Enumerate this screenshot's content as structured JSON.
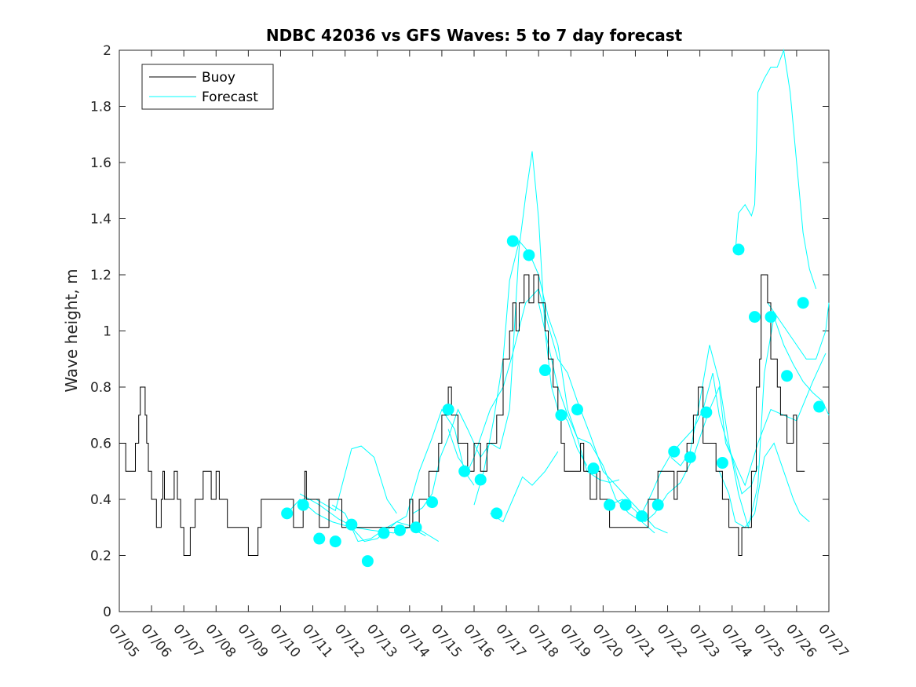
{
  "chart_data": {
    "type": "line",
    "title": "NDBC 42036 vs GFS Waves: 5 to 7 day forecast",
    "xlabel": "",
    "ylabel": "Wave height, m",
    "ylim": [
      0,
      2
    ],
    "xlim": [
      0,
      22
    ],
    "yticks": [
      0,
      0.2,
      0.4,
      0.6,
      0.8,
      1,
      1.2,
      1.4,
      1.6,
      1.8,
      2
    ],
    "ytick_labels": [
      "0",
      "0.2",
      "0.4",
      "0.6",
      "0.8",
      "1",
      "1.2",
      "1.4",
      "1.6",
      "1.8",
      "2"
    ],
    "xtick_labels": [
      "07/05",
      "07/06",
      "07/07",
      "07/08",
      "07/09",
      "07/10",
      "07/11",
      "07/12",
      "07/13",
      "07/14",
      "07/15",
      "07/16",
      "07/17",
      "07/18",
      "07/19",
      "07/20",
      "07/21",
      "07/22",
      "07/23",
      "07/24",
      "07/25",
      "07/26",
      "07/27"
    ],
    "x_unit_note": "",
    "grid": false,
    "legend_position": "top-left",
    "legend": [
      {
        "label": "Buoy",
        "color": "#000000"
      },
      {
        "label": "Forecast",
        "color": "#00ffff"
      }
    ],
    "colors": {
      "buoy": "#000000",
      "forecast": "#00ffff"
    },
    "series": [
      {
        "name": "Buoy",
        "style": "step",
        "points": [
          [
            0.0,
            0.6
          ],
          [
            0.1,
            0.6
          ],
          [
            0.2,
            0.5
          ],
          [
            0.5,
            0.6
          ],
          [
            0.6,
            0.7
          ],
          [
            0.65,
            0.8
          ],
          [
            0.8,
            0.7
          ],
          [
            0.85,
            0.6
          ],
          [
            0.9,
            0.5
          ],
          [
            1.0,
            0.4
          ],
          [
            1.1,
            0.4
          ],
          [
            1.15,
            0.3
          ],
          [
            1.3,
            0.4
          ],
          [
            1.35,
            0.5
          ],
          [
            1.4,
            0.4
          ],
          [
            1.7,
            0.5
          ],
          [
            1.8,
            0.4
          ],
          [
            1.9,
            0.3
          ],
          [
            2.0,
            0.2
          ],
          [
            2.2,
            0.3
          ],
          [
            2.35,
            0.4
          ],
          [
            2.6,
            0.5
          ],
          [
            2.85,
            0.4
          ],
          [
            3.0,
            0.5
          ],
          [
            3.1,
            0.4
          ],
          [
            3.35,
            0.3
          ],
          [
            4.0,
            0.2
          ],
          [
            4.3,
            0.3
          ],
          [
            4.4,
            0.4
          ],
          [
            5.4,
            0.3
          ],
          [
            5.7,
            0.4
          ],
          [
            5.75,
            0.5
          ],
          [
            5.8,
            0.4
          ],
          [
            6.0,
            0.4
          ],
          [
            6.2,
            0.3
          ],
          [
            6.5,
            0.4
          ],
          [
            6.9,
            0.3
          ],
          [
            7.1,
            0.3
          ],
          [
            8.9,
            0.3
          ],
          [
            9.0,
            0.4
          ],
          [
            9.1,
            0.3
          ],
          [
            9.3,
            0.4
          ],
          [
            9.6,
            0.5
          ],
          [
            9.9,
            0.6
          ],
          [
            10.0,
            0.7
          ],
          [
            10.2,
            0.8
          ],
          [
            10.3,
            0.7
          ],
          [
            10.5,
            0.6
          ],
          [
            10.8,
            0.5
          ],
          [
            11.0,
            0.6
          ],
          [
            11.2,
            0.5
          ],
          [
            11.4,
            0.6
          ],
          [
            11.7,
            0.7
          ],
          [
            11.9,
            0.9
          ],
          [
            12.1,
            1.0
          ],
          [
            12.2,
            1.1
          ],
          [
            12.3,
            1.0
          ],
          [
            12.4,
            1.1
          ],
          [
            12.55,
            1.2
          ],
          [
            12.7,
            1.1
          ],
          [
            12.85,
            1.2
          ],
          [
            13.0,
            1.1
          ],
          [
            13.2,
            1.0
          ],
          [
            13.3,
            0.9
          ],
          [
            13.45,
            0.8
          ],
          [
            13.6,
            0.7
          ],
          [
            13.7,
            0.6
          ],
          [
            13.8,
            0.5
          ],
          [
            14.0,
            0.5
          ],
          [
            14.3,
            0.6
          ],
          [
            14.4,
            0.5
          ],
          [
            14.6,
            0.4
          ],
          [
            14.8,
            0.5
          ],
          [
            14.9,
            0.4
          ],
          [
            15.0,
            0.4
          ],
          [
            15.2,
            0.3
          ],
          [
            16.0,
            0.3
          ],
          [
            16.4,
            0.4
          ],
          [
            16.6,
            0.4
          ],
          [
            16.7,
            0.5
          ],
          [
            17.2,
            0.4
          ],
          [
            17.3,
            0.5
          ],
          [
            17.6,
            0.6
          ],
          [
            17.8,
            0.7
          ],
          [
            17.95,
            0.8
          ],
          [
            18.1,
            0.6
          ],
          [
            18.5,
            0.5
          ],
          [
            18.7,
            0.4
          ],
          [
            18.9,
            0.3
          ],
          [
            19.2,
            0.2
          ],
          [
            19.3,
            0.3
          ],
          [
            19.6,
            0.5
          ],
          [
            19.75,
            0.8
          ],
          [
            19.85,
            0.9
          ],
          [
            19.9,
            1.2
          ],
          [
            20.1,
            1.1
          ],
          [
            20.2,
            0.9
          ],
          [
            20.4,
            0.8
          ],
          [
            20.5,
            0.7
          ],
          [
            20.7,
            0.6
          ],
          [
            20.9,
            0.7
          ],
          [
            21.0,
            0.5
          ],
          [
            21.25,
            0.5
          ]
        ]
      }
    ],
    "forecast_lines": [
      [
        [
          5.2,
          0.35
        ],
        [
          5.6,
          0.4
        ],
        [
          6.1,
          0.35
        ],
        [
          6.6,
          0.32
        ],
        [
          7.2,
          0.3
        ],
        [
          7.6,
          0.25
        ],
        [
          8.0,
          0.26
        ],
        [
          8.6,
          0.32
        ],
        [
          9.2,
          0.3
        ],
        [
          9.9,
          0.25
        ]
      ],
      [
        [
          5.6,
          0.42
        ],
        [
          6.2,
          0.38
        ],
        [
          6.8,
          0.33
        ],
        [
          7.3,
          0.3
        ],
        [
          7.8,
          0.29
        ],
        [
          8.5,
          0.28
        ],
        [
          9.0,
          0.3
        ],
        [
          9.5,
          0.27
        ]
      ],
      [
        [
          6.1,
          0.4
        ],
        [
          6.7,
          0.36
        ],
        [
          7.2,
          0.58
        ],
        [
          7.5,
          0.59
        ],
        [
          7.9,
          0.55
        ],
        [
          8.3,
          0.4
        ],
        [
          8.6,
          0.35
        ]
      ],
      [
        [
          6.6,
          0.38
        ],
        [
          7.0,
          0.35
        ],
        [
          7.4,
          0.25
        ],
        [
          7.8,
          0.26
        ],
        [
          8.3,
          0.3
        ],
        [
          8.9,
          0.34
        ],
        [
          9.3,
          0.5
        ],
        [
          9.7,
          0.62
        ],
        [
          10.0,
          0.72
        ],
        [
          10.4,
          0.65
        ],
        [
          10.7,
          0.5
        ],
        [
          11.0,
          0.45
        ]
      ],
      [
        [
          9.1,
          0.35
        ],
        [
          9.4,
          0.37
        ],
        [
          9.7,
          0.42
        ],
        [
          9.95,
          0.55
        ],
        [
          10.2,
          0.62
        ],
        [
          10.5,
          0.72
        ],
        [
          10.8,
          0.65
        ],
        [
          11.2,
          0.55
        ],
        [
          11.5,
          0.6
        ],
        [
          11.8,
          0.58
        ],
        [
          12.1,
          0.72
        ],
        [
          12.4,
          1.3
        ],
        [
          12.6,
          1.48
        ],
        [
          12.8,
          1.64
        ],
        [
          13.0,
          1.4
        ],
        [
          13.2,
          1.0
        ],
        [
          13.4,
          0.8
        ],
        [
          13.6,
          0.72
        ],
        [
          13.9,
          0.68
        ],
        [
          14.2,
          0.58
        ],
        [
          14.5,
          0.52
        ]
      ],
      [
        [
          11.0,
          0.38
        ],
        [
          11.3,
          0.5
        ],
        [
          11.6,
          0.68
        ],
        [
          11.9,
          0.9
        ],
        [
          12.1,
          1.18
        ],
        [
          12.4,
          1.32
        ],
        [
          12.7,
          1.28
        ],
        [
          13.0,
          1.2
        ],
        [
          13.3,
          1.05
        ],
        [
          13.6,
          0.95
        ],
        [
          13.9,
          0.72
        ],
        [
          14.2,
          0.62
        ],
        [
          14.5,
          0.5
        ],
        [
          14.9,
          0.47
        ],
        [
          15.2,
          0.46
        ],
        [
          15.5,
          0.47
        ]
      ],
      [
        [
          11.5,
          0.35
        ],
        [
          11.9,
          0.32
        ],
        [
          12.2,
          0.4
        ],
        [
          12.5,
          0.48
        ],
        [
          12.8,
          0.45
        ],
        [
          13.2,
          0.5
        ],
        [
          13.6,
          0.57
        ]
      ],
      [
        [
          10.2,
          0.65
        ],
        [
          10.5,
          0.55
        ],
        [
          10.8,
          0.5
        ],
        [
          11.0,
          0.55
        ],
        [
          11.2,
          0.62
        ],
        [
          11.5,
          0.72
        ],
        [
          11.9,
          0.8
        ],
        [
          12.2,
          0.92
        ],
        [
          12.6,
          1.1
        ],
        [
          13.0,
          1.15
        ],
        [
          13.3,
          1.02
        ],
        [
          13.6,
          0.9
        ],
        [
          13.9,
          0.85
        ],
        [
          14.2,
          0.75
        ],
        [
          14.6,
          0.63
        ],
        [
          15.0,
          0.5
        ],
        [
          15.4,
          0.45
        ],
        [
          15.8,
          0.4
        ],
        [
          16.2,
          0.35
        ],
        [
          16.6,
          0.3
        ],
        [
          17.0,
          0.28
        ]
      ],
      [
        [
          13.0,
          1.1
        ],
        [
          13.3,
          0.95
        ],
        [
          13.6,
          0.8
        ],
        [
          13.9,
          0.7
        ],
        [
          14.2,
          0.62
        ],
        [
          14.6,
          0.6
        ],
        [
          15.0,
          0.52
        ],
        [
          15.4,
          0.4
        ],
        [
          15.8,
          0.35
        ],
        [
          16.2,
          0.32
        ],
        [
          16.6,
          0.28
        ]
      ],
      [
        [
          15.2,
          0.38
        ],
        [
          15.6,
          0.4
        ],
        [
          16.0,
          0.36
        ],
        [
          16.3,
          0.32
        ],
        [
          16.6,
          0.35
        ],
        [
          17.0,
          0.42
        ],
        [
          17.4,
          0.46
        ],
        [
          17.8,
          0.55
        ],
        [
          18.0,
          0.62
        ],
        [
          18.3,
          0.72
        ],
        [
          18.6,
          0.8
        ],
        [
          18.8,
          0.6
        ],
        [
          19.0,
          0.55
        ],
        [
          19.3,
          0.42
        ],
        [
          19.6,
          0.45
        ],
        [
          19.8,
          0.52
        ]
      ],
      [
        [
          16.2,
          0.35
        ],
        [
          16.5,
          0.42
        ],
        [
          16.8,
          0.5
        ],
        [
          17.1,
          0.56
        ],
        [
          17.4,
          0.6
        ],
        [
          17.8,
          0.65
        ],
        [
          18.1,
          0.72
        ],
        [
          18.4,
          0.85
        ],
        [
          18.6,
          0.7
        ],
        [
          18.9,
          0.58
        ],
        [
          19.2,
          0.5
        ],
        [
          19.4,
          0.45
        ],
        [
          19.8,
          0.6
        ],
        [
          20.2,
          0.72
        ],
        [
          20.6,
          0.7
        ],
        [
          21.0,
          0.68
        ],
        [
          21.5,
          0.82
        ],
        [
          21.9,
          0.92
        ]
      ],
      [
        [
          17.1,
          0.55
        ],
        [
          17.4,
          0.52
        ],
        [
          17.7,
          0.57
        ],
        [
          18.0,
          0.75
        ],
        [
          18.3,
          0.95
        ],
        [
          18.6,
          0.82
        ],
        [
          18.9,
          0.6
        ],
        [
          19.2,
          0.42
        ],
        [
          19.5,
          0.3
        ],
        [
          19.8,
          0.45
        ],
        [
          20.0,
          0.85
        ],
        [
          20.3,
          1.05
        ],
        [
          20.6,
          0.95
        ],
        [
          20.9,
          0.88
        ],
        [
          21.2,
          0.82
        ],
        [
          21.5,
          0.78
        ],
        [
          21.8,
          0.75
        ],
        [
          22.0,
          0.7
        ]
      ],
      [
        [
          19.1,
          1.28
        ],
        [
          19.2,
          1.42
        ],
        [
          19.4,
          1.45
        ],
        [
          19.6,
          1.41
        ],
        [
          19.7,
          1.45
        ],
        [
          19.8,
          1.85
        ],
        [
          20.0,
          1.9
        ],
        [
          20.2,
          1.94
        ],
        [
          20.4,
          1.94
        ],
        [
          20.6,
          2.0
        ],
        [
          20.8,
          1.85
        ],
        [
          21.0,
          1.6
        ],
        [
          21.2,
          1.35
        ],
        [
          21.4,
          1.22
        ],
        [
          21.6,
          1.15
        ]
      ],
      [
        [
          18.6,
          0.5
        ],
        [
          18.9,
          0.42
        ],
        [
          19.1,
          0.32
        ],
        [
          19.4,
          0.3
        ],
        [
          19.7,
          0.35
        ],
        [
          20.0,
          0.55
        ],
        [
          20.3,
          0.6
        ],
        [
          20.6,
          0.5
        ],
        [
          20.9,
          0.4
        ],
        [
          21.1,
          0.35
        ],
        [
          21.4,
          0.32
        ]
      ],
      [
        [
          20.1,
          1.1
        ],
        [
          20.4,
          1.05
        ],
        [
          20.7,
          1.0
        ],
        [
          21.0,
          0.95
        ],
        [
          21.3,
          0.9
        ],
        [
          21.6,
          0.9
        ],
        [
          21.9,
          1.0
        ],
        [
          22.0,
          1.1
        ]
      ]
    ],
    "forecast_points": [
      [
        5.2,
        0.35
      ],
      [
        5.7,
        0.38
      ],
      [
        6.2,
        0.26
      ],
      [
        6.7,
        0.25
      ],
      [
        7.2,
        0.31
      ],
      [
        7.7,
        0.18
      ],
      [
        8.2,
        0.28
      ],
      [
        8.7,
        0.29
      ],
      [
        9.2,
        0.3
      ],
      [
        9.7,
        0.39
      ],
      [
        10.2,
        0.72
      ],
      [
        10.7,
        0.5
      ],
      [
        11.2,
        0.47
      ],
      [
        11.7,
        0.35
      ],
      [
        12.2,
        1.32
      ],
      [
        12.7,
        1.27
      ],
      [
        13.2,
        0.86
      ],
      [
        13.7,
        0.7
      ],
      [
        14.2,
        0.72
      ],
      [
        14.7,
        0.51
      ],
      [
        15.2,
        0.38
      ],
      [
        15.7,
        0.38
      ],
      [
        16.2,
        0.34
      ],
      [
        16.7,
        0.38
      ],
      [
        17.2,
        0.57
      ],
      [
        17.7,
        0.55
      ],
      [
        18.2,
        0.71
      ],
      [
        18.7,
        0.53
      ],
      [
        19.2,
        1.29
      ],
      [
        19.7,
        1.05
      ],
      [
        20.2,
        1.05
      ],
      [
        20.7,
        0.84
      ],
      [
        21.2,
        1.1
      ],
      [
        21.7,
        0.73
      ]
    ]
  }
}
